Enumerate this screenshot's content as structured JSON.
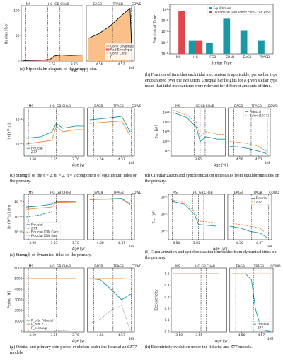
{
  "phases": [
    {
      "label": "MS",
      "x": 3.59
    },
    {
      "label": "HG",
      "x": 3.64
    },
    {
      "label": "GB",
      "x": 3.655
    },
    {
      "label": "CHeB",
      "x": 3.668
    },
    {
      "label": "EAGB",
      "x": 4.557
    },
    {
      "label": "TPAGB",
      "x": 4.566
    },
    {
      "label": "COWD",
      "x": 4.5745
    }
  ],
  "chart_data": [
    {
      "type": "line",
      "caption": "(a) Kippenhahn diagram of the primary star.",
      "ylabel": "Radius [R⊙]",
      "xlabel": "Age [yr]",
      "x_offset": "1e8",
      "phases": true,
      "log_y": false,
      "legend": "lower right",
      "ylim": [
        0,
        110
      ],
      "yticks": [
        0,
        50,
        100
      ],
      "xlim": [
        [
          3.58,
          3.72
        ],
        [
          4.554,
          4.576
        ]
      ],
      "xticks": [
        [
          3.65,
          {
            "value": 3.7,
            "label": "3.70"
          }
        ],
        [
          4.56,
          4.57
        ]
      ],
      "series": [
        {
          "name": "Conv Envelope",
          "color": "#f9c08a",
          "style": "area",
          "x": [
            3.585,
            3.62,
            3.645,
            3.655,
            3.67,
            3.69,
            3.72,
            4.555,
            4.56,
            4.565,
            4.57,
            4.574,
            4.575
          ],
          "values": [
            0.9,
            1.4,
            2.8,
            9.5,
            11.5,
            10.5,
            11.5,
            44,
            54,
            69,
            89,
            104,
            1.9
          ]
        },
        {
          "name": "Rad Envelope",
          "color": "#e35a5a",
          "style": "area",
          "x": [
            3.585,
            3.62,
            3.64
          ],
          "values": [
            1,
            1.5,
            2.5
          ]
        },
        {
          "name": "Conv Core",
          "color": "#fde0c5",
          "style": "area",
          "x": [
            3.585,
            3.62,
            3.64
          ],
          "values": [
            0.6,
            0.5,
            0.3
          ]
        },
        {
          "name": "R",
          "color": "#000000",
          "style": "line",
          "x": [
            3.585,
            3.62,
            3.645,
            3.655,
            3.67,
            3.69,
            3.72,
            4.555,
            4.56,
            4.565,
            4.57,
            4.574,
            4.575
          ],
          "values": [
            1,
            1.5,
            3,
            10,
            12,
            11,
            12,
            45,
            55,
            70,
            90,
            105,
            2
          ]
        }
      ]
    },
    {
      "type": "bar",
      "caption": "(b) Fraction of time that each tidal mechanism is applicable, per stellar type encountered over the evolution. Unequal bar heights for a given stellar type mean that tidal mechanisms were relevant for different amounts of time.",
      "ylabel": "Fraction of Time",
      "xlabel": "Stellar Type",
      "log_y": true,
      "legend": "upper right",
      "ylim": [
        0.0001,
        3
      ],
      "yticks": [
        {
          "value": 0.0001,
          "label": "10⁻⁴"
        },
        {
          "value": 0.001,
          "label": "10⁻³"
        },
        {
          "value": 0.01,
          "label": "10⁻²"
        },
        {
          "value": 0.1,
          "label": "10⁻¹"
        },
        {
          "value": 1,
          "label": "10⁰"
        }
      ],
      "categories": [
        "MS",
        "HG",
        "FGB",
        "CHeB",
        "EAGB",
        "TPAGB"
      ],
      "series": [
        {
          "name": "Equilibrium",
          "color": "#1a98a6",
          "values": [
            null,
            0.0015,
            0.001,
            0.15,
            0.012,
            0.0015
          ]
        },
        {
          "name": "Dynamical IGW (conv core - rad env)",
          "color": "#e0474c",
          "values": [
            0.8,
            0.0015,
            null,
            null,
            null,
            null
          ]
        }
      ]
    },
    {
      "type": "line",
      "caption": "(c) Strength of the ℓ = 2, m = 2, n = 2 component of equilibrium tides on the primary.",
      "ylabel": "|Im[k²²₂₂]|",
      "xlabel": "Age [yr]",
      "x_offset": "1e8",
      "phases": true,
      "log_y": true,
      "legend": "lower left",
      "ylim": [
        1e-09,
        1e-05
      ],
      "yticks": [
        {
          "value": 1e-08,
          "label": "10⁻⁸"
        },
        {
          "value": 1e-06,
          "label": "10⁻⁶"
        }
      ],
      "xlim": [
        [
          3.58,
          3.72
        ],
        [
          4.554,
          4.576
        ]
      ],
      "xticks": [
        [
          {
            "value": 3.6,
            "label": "3.60"
          },
          3.65,
          {
            "value": 3.7,
            "label": "3.70"
          }
        ],
        [
          4.56,
          4.57
        ]
      ],
      "series": [
        {
          "name": "Fiducial",
          "color": "#1a98a6",
          "style": "line",
          "x": [
            3.585,
            3.62,
            3.645,
            3.655,
            3.67,
            3.7,
            3.72,
            4.555,
            4.56,
            4.565,
            4.57,
            4.574
          ],
          "values": [
            3e-08,
            4e-08,
            1e-07,
            5e-07,
            2e-07,
            3e-07,
            3e-07,
            1e-06,
            1.2e-06,
            1.5e-06,
            2e-06,
            1e-07
          ]
        },
        {
          "name": "Z77",
          "color": "#f28e3f",
          "style": "line",
          "x": [
            3.585,
            3.62,
            3.645,
            3.655,
            3.67,
            3.7,
            3.72,
            4.555,
            4.56,
            4.565,
            4.57,
            4.574
          ],
          "values": [
            1e-08,
            1.5e-08,
            2e-08,
            3e-07,
            1e-07,
            1.5e-07,
            1.5e-07,
            5e-07,
            6e-07,
            7e-07,
            8e-07,
            5e-08
          ]
        }
      ]
    },
    {
      "type": "line",
      "caption": "(d) Circularization and synchronization timescales from equilibrium tides on the primary.",
      "ylabel": "τₑ,ₛ [yr]",
      "xlabel": "Age [yr]",
      "x_offset": "1e8",
      "phases": true,
      "log_y": true,
      "legend": "upper right",
      "ylim": [
        1000000,
        1e+26
      ],
      "yticks": [
        {
          "value": 100000000,
          "label": "10⁸"
        },
        {
          "value": 1000000000000,
          "label": "10¹²"
        },
        {
          "value": 1e+16,
          "label": "10¹⁶"
        },
        {
          "value": 1e+20,
          "label": "10²⁰"
        },
        {
          "value": 1e+24,
          "label": "10²⁴"
        }
      ],
      "xlim": [
        [
          3.58,
          3.72
        ],
        [
          4.554,
          4.576
        ]
      ],
      "xticks": [
        [
          3.65
        ],
        [
          4.56,
          4.57
        ]
      ],
      "series": [
        {
          "name": "Fiducial",
          "color": "#1a98a6",
          "style": "line",
          "x": [
            3.585,
            3.62,
            3.645,
            3.655,
            3.67,
            3.7,
            3.72,
            4.555,
            4.56,
            4.565,
            4.57,
            4.574
          ],
          "values": [
            1e+24,
            1e+22,
            1e+18,
            1000000000000,
            100000000000000.0,
            10000000000000,
            10000000000000,
            10000000000,
            5000000000,
            1000000000,
            100000000,
            10000000
          ]
        },
        {
          "name": "Zahn (1977)",
          "color": "#f28e3f",
          "style": "line",
          "dash": "dashed",
          "x": [
            3.585,
            3.62,
            3.645,
            3.655,
            3.67,
            3.7,
            3.72,
            4.555,
            4.56,
            4.565,
            4.57,
            4.574
          ],
          "values": [
            1e+25,
            1e+23,
            1e+20,
            100000000000000.0,
            1e+16,
            1000000000000000.0,
            1000000000000000.0,
            1000000000000,
            500000000000,
            100000000000,
            10000000000,
            100000000
          ]
        }
      ]
    },
    {
      "type": "line",
      "caption": "(e) Strength of dynamical tides on the primary.",
      "ylabel": "|Im[k²²₂₂]|dyn",
      "xlabel": "Age [yr]",
      "x_offset": "1e8",
      "phases": true,
      "log_y": true,
      "legend": "lower left",
      "ylim": [
        1e-17,
        1e-11
      ],
      "yticks": [
        {
          "value": 1e-16,
          "label": "10⁻¹⁶"
        },
        {
          "value": 1e-14,
          "label": "10⁻¹⁴"
        },
        {
          "value": 1e-12,
          "label": "10⁻¹²"
        }
      ],
      "xlim": [
        [
          3.58,
          3.72
        ],
        [
          4.554,
          4.576
        ]
      ],
      "xticks": [
        [
          {
            "value": 3.6,
            "label": "3.60"
          },
          3.65,
          {
            "value": 3.7,
            "label": "3.70"
          }
        ],
        [
          4.56,
          4.57
        ]
      ],
      "series": [
        {
          "name": "Fiducial",
          "color": "#1a98a6",
          "style": "line",
          "x": [
            3.585,
            3.62,
            3.645,
            3.655,
            3.7,
            4.555,
            4.57,
            4.574
          ],
          "values": [
            2e-13,
            3e-13,
            5e-13,
            1e-12,
            1e-12,
            2e-12,
            3e-12,
            5e-13
          ]
        },
        {
          "name": "Z77",
          "color": "#f28e3f",
          "style": "line",
          "x": [
            3.585,
            3.62,
            3.645,
            3.655,
            3.7,
            4.555,
            4.57,
            4.574
          ],
          "values": [
            1e-13,
            1.5e-13,
            2e-13,
            8e-13,
            9e-13,
            2e-12,
            2.5e-12,
            4e-13
          ]
        },
        {
          "name": "Fiducial IGW Core",
          "color": "#1a98a6",
          "style": "line",
          "dash": "dashed",
          "x": [
            3.585,
            3.62,
            3.645
          ],
          "values": [
            1e-14,
            2e-14,
            5e-14
          ]
        },
        {
          "name": "Fiducial IGW Env",
          "color": "#f28e3f",
          "style": "line",
          "dash": "dotted",
          "x": [
            3.585,
            3.62,
            3.645
          ],
          "values": [
            1e-16,
            3e-16,
            1e-15
          ]
        }
      ]
    },
    {
      "type": "line",
      "caption": "(f) Circularization and synchronization timescales from dynamical tides on the primary.",
      "ylabel": "τₑ,ₛ [yr]",
      "xlabel": "Age [yr]",
      "x_offset": "1e8",
      "phases": true,
      "log_y": true,
      "legend": "upper right",
      "ylim": [
        100000,
        1e+32
      ],
      "yticks": [
        {
          "value": 10000000000,
          "label": "10¹⁰"
        },
        {
          "value": 1e+20,
          "label": "10²⁰"
        },
        {
          "value": 1e+30,
          "label": "10³⁰"
        }
      ],
      "xlim": [
        [
          3.58,
          3.72
        ],
        [
          4.554,
          4.576
        ]
      ],
      "xticks": [
        [
          {
            "value": 3.6,
            "label": "3.60"
          },
          3.65
        ],
        [
          4.56,
          4.57
        ]
      ],
      "series": [
        {
          "name": "Fiducial",
          "color": "#1a98a6",
          "style": "line",
          "x": [
            3.585,
            3.62,
            3.645,
            3.655,
            3.7,
            4.555,
            4.56,
            4.565,
            4.57,
            4.574
          ],
          "values": [
            1e+28,
            1e+26,
            1e+20,
            100000000000000.0,
            10000000000000,
            10000000000000,
            1000000000000,
            10000000000,
            1000000000,
            1000000
          ]
        },
        {
          "name": "Z77",
          "color": "#f28e3f",
          "style": "line",
          "dash": "dashed",
          "x": [
            3.585,
            3.62,
            3.645,
            3.655,
            3.7,
            4.555,
            4.56,
            4.565,
            4.57,
            4.574
          ],
          "values": [
            1e+29,
            1e+27,
            1e+22,
            1e+16,
            1000000000000000.0,
            1000000000000000.0,
            100000000000000.0,
            10000000000000,
            1000000000000,
            100000000
          ]
        }
      ]
    },
    {
      "type": "line",
      "caption": "(g) Orbital and primary spin period evolution under the fiducial and Z77 models.",
      "ylabel": "Period [d]",
      "xlabel": "Age [yr]",
      "x_offset": "1e8",
      "phases": true,
      "log_y": false,
      "legend": "lower left",
      "ylim": [
        0,
        6000
      ],
      "yticks": [
        0,
        1000,
        2000,
        3000,
        4000,
        5000,
        6000
      ],
      "xlim": [
        [
          3.58,
          3.72
        ],
        [
          4.554,
          4.576
        ]
      ],
      "xticks": [
        [
          {
            "value": 3.6,
            "label": "3.60"
          },
          3.65,
          {
            "value": 3.7,
            "label": "3.70"
          }
        ],
        [
          4.56,
          4.57
        ]
      ],
      "series": [
        {
          "name": "P_orb, Fiducial",
          "color": "#1a98a6",
          "style": "line",
          "x": [
            3.585,
            3.7,
            4.555,
            4.56,
            4.565,
            4.57,
            4.574,
            4.575
          ],
          "values": [
            5000,
            5000,
            5000,
            4900,
            4000,
            3000,
            3500,
            3600
          ]
        },
        {
          "name": "P_orb, Z77",
          "color": "#f28e3f",
          "style": "line",
          "x": [
            3.585,
            3.7,
            4.555,
            4.56,
            4.565,
            4.57,
            4.574,
            4.575
          ],
          "values": [
            5000,
            5000,
            5000,
            5000,
            5000,
            5000,
            4950,
            4950
          ]
        },
        {
          "name": "P_breakup",
          "color": "#888888",
          "style": "line",
          "dash": "dotted",
          "x": [
            3.585,
            3.645,
            3.7,
            4.555,
            4.56,
            4.565,
            4.57,
            4.574
          ],
          "values": [
            10,
            30,
            200,
            800,
            1200,
            2000,
            2500,
            100
          ]
        }
      ]
    },
    {
      "type": "line",
      "caption": "(h) Eccentricity evolution under the fiducial and Z77 models.",
      "ylabel": "Eccentricity",
      "xlabel": "Age [yr]",
      "x_offset": "1e8",
      "phases": true,
      "log_y": false,
      "legend": "lower right",
      "ylim": [
        0,
        0.55
      ],
      "yticks": [
        {
          "value": 0,
          "label": "0.0"
        },
        0.1,
        0.2,
        0.3,
        0.4,
        0.5
      ],
      "xlim": [
        [
          3.58,
          3.72
        ],
        [
          4.554,
          4.576
        ]
      ],
      "xticks": [
        [
          {
            "value": 3.6,
            "label": "3.60"
          },
          3.65
        ],
        [
          4.56,
          4.57
        ]
      ],
      "series": [
        {
          "name": "Fiducial",
          "color": "#1a98a6",
          "style": "line",
          "x": [
            3.585,
            3.7,
            4.555,
            4.562,
            4.565,
            4.567,
            4.57,
            4.575
          ],
          "values": [
            0.5,
            0.5,
            0.5,
            0.5,
            0.45,
            0.2,
            0.02,
            0
          ]
        },
        {
          "name": "Z77",
          "color": "#f28e3f",
          "style": "line",
          "x": [
            3.585,
            3.7,
            4.555,
            4.562,
            4.565,
            4.567,
            4.57,
            4.575
          ],
          "values": [
            0.5,
            0.5,
            0.5,
            0.5,
            0.5,
            0.5,
            0.5,
            0.5
          ]
        }
      ]
    }
  ]
}
